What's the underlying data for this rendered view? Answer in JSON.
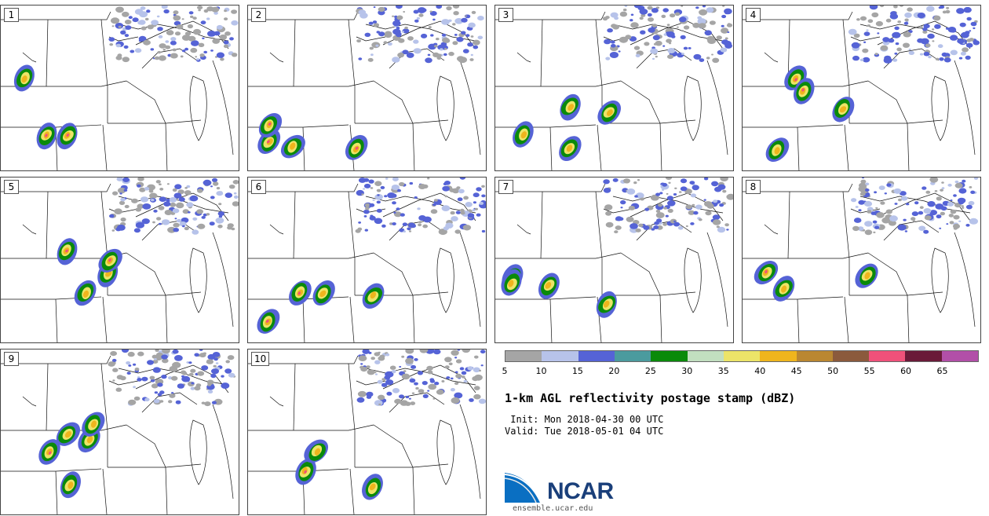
{
  "panels": [
    {
      "label": "1"
    },
    {
      "label": "2"
    },
    {
      "label": "3"
    },
    {
      "label": "4"
    },
    {
      "label": "5"
    },
    {
      "label": "6"
    },
    {
      "label": "7"
    },
    {
      "label": "8"
    },
    {
      "label": "9"
    },
    {
      "label": "10"
    }
  ],
  "colorbar": {
    "colors": [
      "#a5a5a5",
      "#b7c3ea",
      "#5563d6",
      "#4b9b9e",
      "#0a8a0a",
      "#c2dfc0",
      "#ece468",
      "#efb51d",
      "#ba8731",
      "#8b5a3c",
      "#f0517a",
      "#6a1a38",
      "#b24fa8"
    ],
    "ticks": [
      "5",
      "10",
      "15",
      "20",
      "25",
      "30",
      "35",
      "40",
      "45",
      "50",
      "55",
      "60",
      "65"
    ]
  },
  "title": "1-km AGL reflectivity postage stamp (dBZ)",
  "init": " Init: Mon 2018-04-30 00 UTC",
  "valid": "Valid: Tue 2018-05-01 04 UTC",
  "logo": {
    "text": "NCAR",
    "website": "ensemble.ucar.edu"
  }
}
